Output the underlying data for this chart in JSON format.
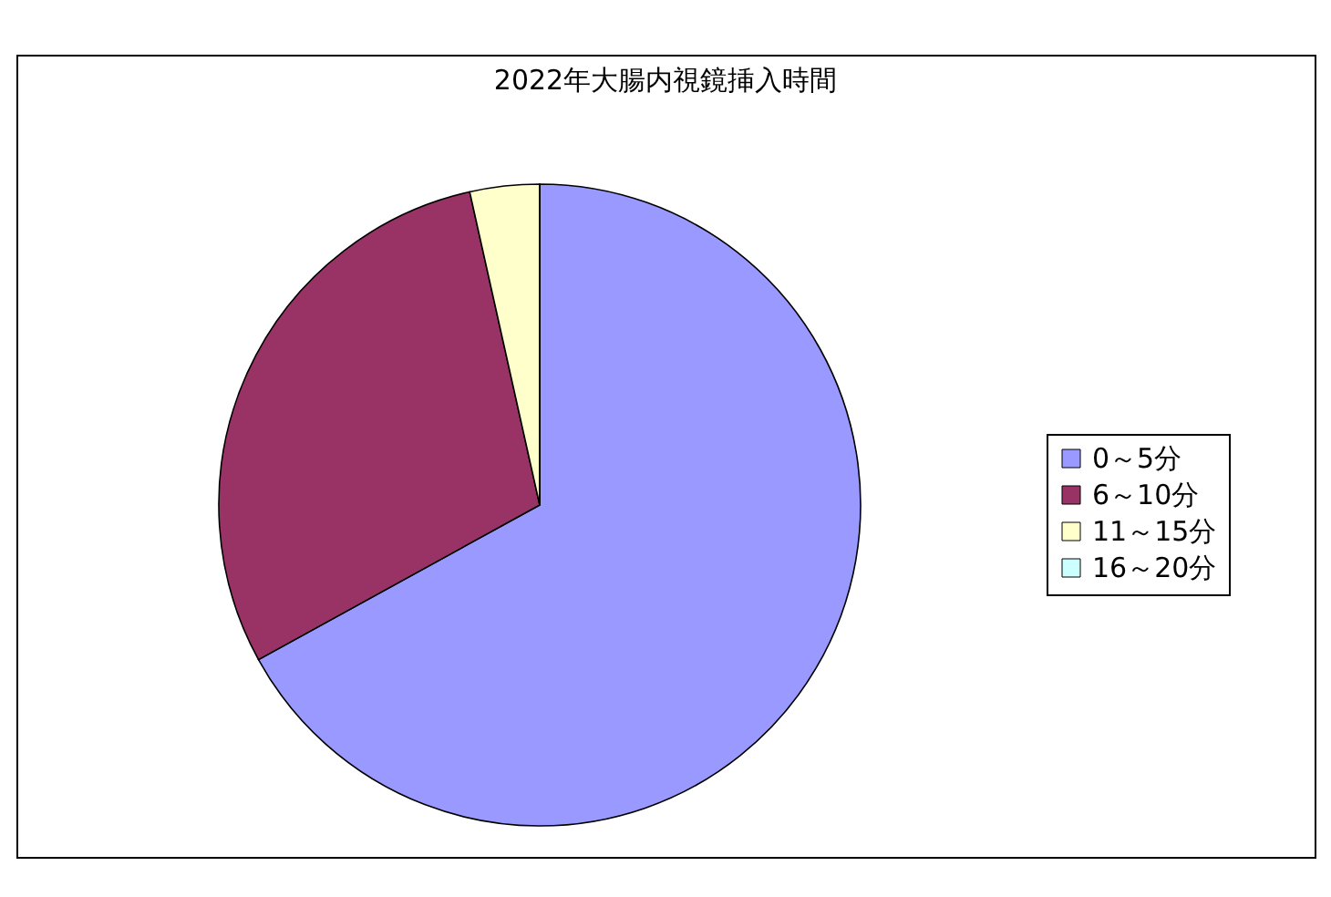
{
  "chart_data": {
    "type": "pie",
    "title": "2022年大腸内視鏡挿入時間",
    "categories": [
      "0～5分",
      "6～10分",
      "11～15分",
      "16～20分"
    ],
    "values": [
      67,
      29.5,
      3.5,
      0
    ],
    "colors": [
      "#9999ff",
      "#993366",
      "#ffffcc",
      "#ccffff"
    ],
    "legend": "right"
  }
}
